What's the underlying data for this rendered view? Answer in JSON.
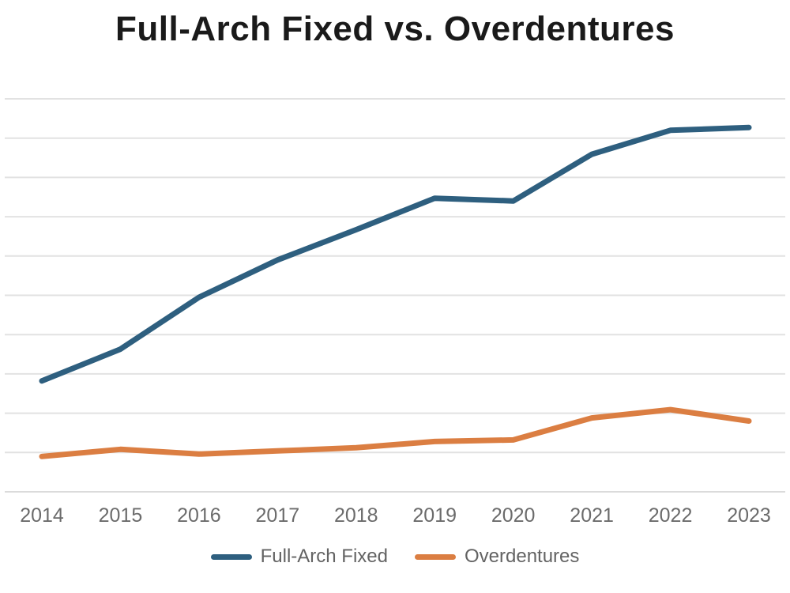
{
  "title": "Full-Arch Fixed vs. Overdentures",
  "colors": {
    "background": "#FFFFFF",
    "title_text": "#1A1A1A",
    "tick_text": "#6B6B6B",
    "legend_text": "#636363",
    "gridline": "#E2E2E2",
    "axis_line": "#DBDBDB",
    "series1": "#2E5F7F",
    "series2": "#DB7E42"
  },
  "chart_data": {
    "type": "line",
    "title": "Full-Arch Fixed vs. Overdentures",
    "x": [
      "2014",
      "2015",
      "2016",
      "2017",
      "2018",
      "2019",
      "2020",
      "2021",
      "2022",
      "2023"
    ],
    "series": [
      {
        "name": "Full-Arch Fixed",
        "color": "#2E5F7F",
        "values": [
          28.2,
          36.3,
          49.5,
          59.0,
          66.7,
          74.7,
          74.0,
          85.9,
          92.0,
          92.7
        ]
      },
      {
        "name": "Overdentures",
        "color": "#DB7E42",
        "values": [
          9.0,
          10.8,
          9.6,
          10.4,
          11.2,
          12.8,
          13.2,
          18.8,
          20.9,
          18.0
        ]
      }
    ],
    "xlabel": "",
    "ylabel": "",
    "ylim": [
      0,
      100
    ],
    "y_gridline_step": 10,
    "y_tick_labels_visible": false,
    "grid": "horizontal",
    "legend_position": "bottom-center"
  },
  "legend": {
    "items": [
      {
        "label": "Full-Arch Fixed",
        "color": "#2E5F7F"
      },
      {
        "label": "Overdentures",
        "color": "#DB7E42"
      }
    ]
  }
}
